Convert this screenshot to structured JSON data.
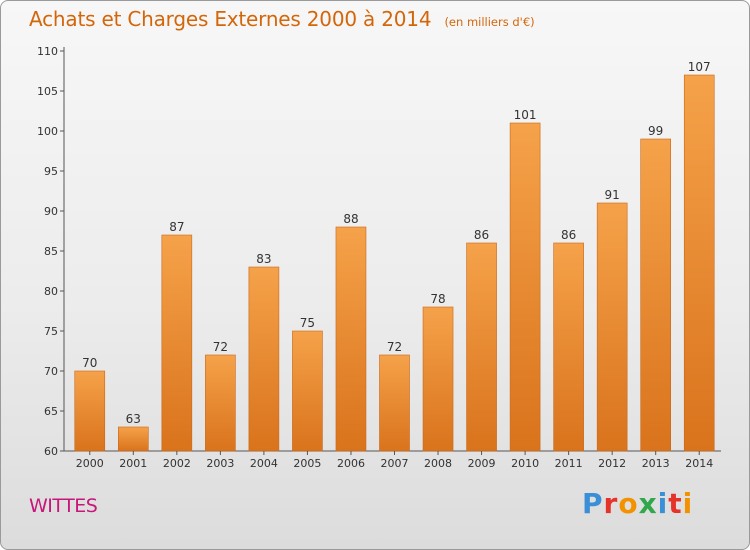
{
  "header": {
    "title": "Achats et Charges Externes 2000 à 2014",
    "subtitle": "(en milliers d'€)"
  },
  "footer": {
    "place": "WITTES",
    "brand": "Proxiti",
    "brand_colors": [
      "#3a8fd6",
      "#e6332a",
      "#f39200",
      "#2ea84a",
      "#3a8fd6",
      "#e6332a",
      "#f39200"
    ]
  },
  "colors": {
    "bar_top": "#f5a24a",
    "bar_bottom": "#d9731c",
    "axis": "#555555",
    "grid": "#bbbbbb"
  },
  "chart_data": {
    "type": "bar",
    "categories": [
      "2000",
      "2001",
      "2002",
      "2003",
      "2004",
      "2005",
      "2006",
      "2007",
      "2008",
      "2009",
      "2010",
      "2011",
      "2012",
      "2013",
      "2014"
    ],
    "values": [
      70,
      63,
      87,
      72,
      83,
      75,
      88,
      72,
      78,
      86,
      101,
      86,
      91,
      99,
      107
    ],
    "ylim": [
      60,
      110
    ],
    "yticks": [
      60,
      65,
      70,
      75,
      80,
      85,
      90,
      95,
      100,
      105,
      110
    ],
    "xlabel": "",
    "ylabel": "",
    "grid": false
  }
}
